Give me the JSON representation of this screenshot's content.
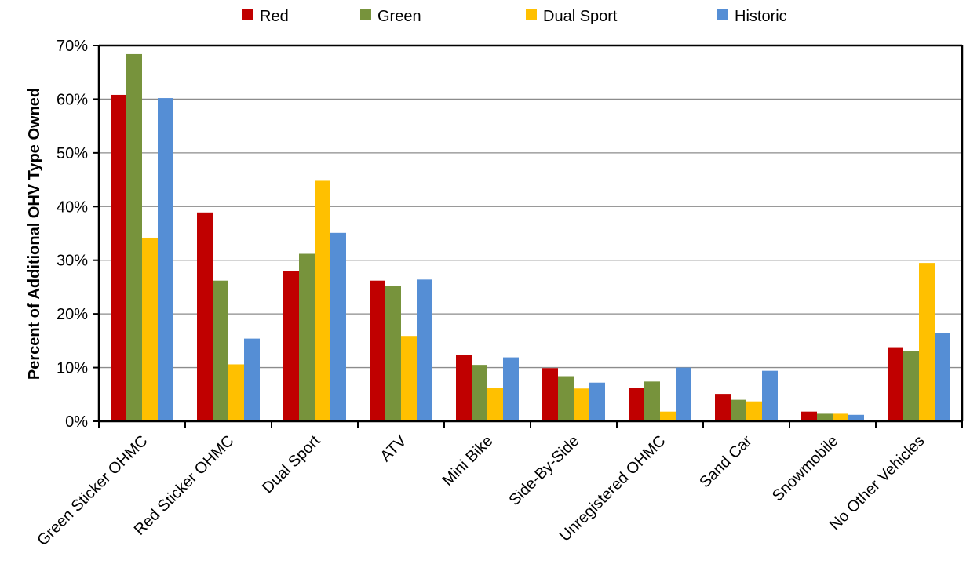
{
  "chart_data": {
    "type": "bar",
    "title": "",
    "xlabel": "",
    "ylabel": "Percent of Additional OHV Type Owned",
    "ylim": [
      0,
      70
    ],
    "yticks": [
      0,
      10,
      20,
      30,
      40,
      50,
      60,
      70
    ],
    "ytick_labels": [
      "0%",
      "10%",
      "20%",
      "30%",
      "40%",
      "50%",
      "60%",
      "70%"
    ],
    "grid": true,
    "legend_position": "top",
    "categories": [
      "Green Sticker OHMC",
      "Red Sticker OHMC",
      "Dual Sport",
      "ATV",
      "Mini Bike",
      "Side-By-Side",
      "Unregistered OHMC",
      "Sand Car",
      "Snowmobile",
      "No Other Vehicles"
    ],
    "series": [
      {
        "name": "Red",
        "color": "#c00000",
        "values": [
          60.8,
          38.9,
          28.0,
          26.2,
          12.4,
          9.9,
          6.2,
          5.1,
          1.8,
          13.8
        ]
      },
      {
        "name": "Green",
        "color": "#77933c",
        "values": [
          68.4,
          26.2,
          31.2,
          25.2,
          10.5,
          8.4,
          7.4,
          4.0,
          1.4,
          13.1
        ]
      },
      {
        "name": "Dual Sport",
        "color": "#ffc000",
        "values": [
          34.2,
          10.6,
          44.8,
          15.9,
          6.2,
          6.1,
          1.8,
          3.7,
          1.4,
          29.5
        ]
      },
      {
        "name": "Historic",
        "color": "#558ed5",
        "values": [
          60.2,
          15.4,
          35.1,
          26.4,
          11.9,
          7.2,
          10.0,
          9.4,
          1.2,
          16.5
        ]
      }
    ]
  }
}
